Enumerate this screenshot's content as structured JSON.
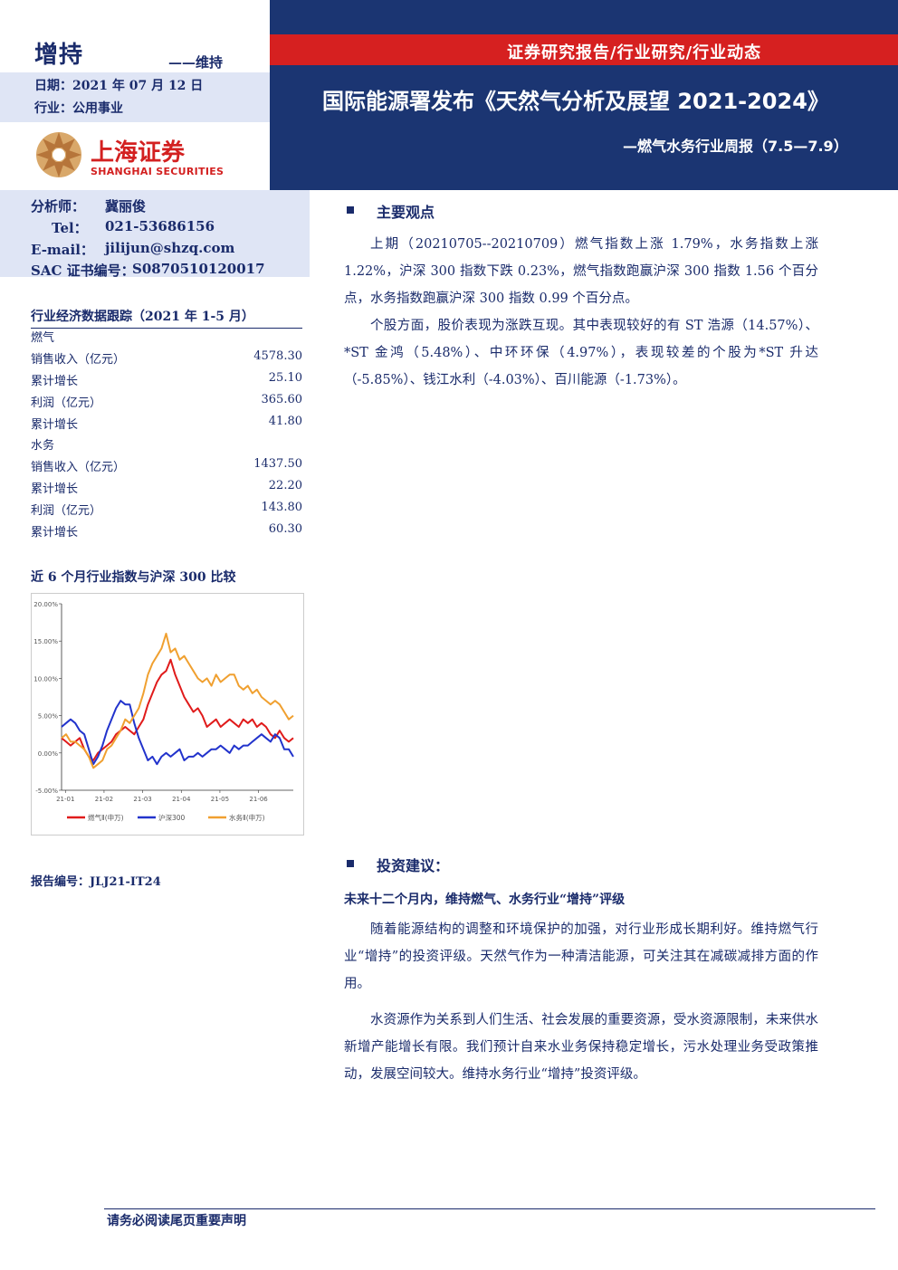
{
  "header": {
    "rating": "增持",
    "rating_sub": "——维持",
    "date": "日期：2021 年 07 月 12 日",
    "industry": "行业：公用事业",
    "logo_cn": "上海证券",
    "logo_en": "SHANGHAI SECURITIES",
    "report_type": "证券研究报告/行业研究/行业动态",
    "title": "国际能源署发布《天然气分析及展望 2021-2024》",
    "subtitle": "—燃气水务行业周报（7.5—7.9）"
  },
  "analyst": {
    "label": "分析师：",
    "name": "冀丽俊",
    "tel_label": "Tel：",
    "tel": "021-53686156",
    "email_label": "E-mail：",
    "email": "jilijun@shzq.com",
    "sac_label": "SAC 证书编号：",
    "sac": "S0870510120017"
  },
  "tracking": {
    "title": "行业经济数据跟踪（2021 年 1-5 月）",
    "rows": [
      {
        "label": "燃气",
        "value": ""
      },
      {
        "label": "销售收入（亿元）",
        "value": "4578.30"
      },
      {
        "label": "累计增长",
        "value": "25.10"
      },
      {
        "label": "利润（亿元）",
        "value": "365.60"
      },
      {
        "label": "累计增长",
        "value": "41.80"
      },
      {
        "label": "水务",
        "value": ""
      },
      {
        "label": "销售收入（亿元）",
        "value": "1437.50"
      },
      {
        "label": "累计增长",
        "value": "22.20"
      },
      {
        "label": "利润（亿元）",
        "value": "143.80"
      },
      {
        "label": "累计增长",
        "value": "60.30"
      }
    ]
  },
  "chart_title": "近 6 个月行业指数与沪深 300 比较",
  "chart_data": {
    "type": "line",
    "title": "",
    "ylim": [
      -5,
      20
    ],
    "yticks": [
      "20.00%",
      "15.00%",
      "10.00%",
      "5.00%",
      "0.00%",
      "-5.00%"
    ],
    "xticks": [
      "21-01",
      "21-02",
      "21-03",
      "21-04",
      "21-05",
      "21-06"
    ],
    "series": [
      {
        "name": "燃气Ⅱ(申万)",
        "color": "#e01b1b",
        "values": [
          2.0,
          1.5,
          1.0,
          1.5,
          2.0,
          0.5,
          -0.5,
          -1.0,
          0.0,
          0.5,
          1.0,
          1.5,
          2.5,
          3.0,
          3.5,
          3.0,
          2.5,
          3.5,
          4.5,
          6.5,
          8.0,
          9.5,
          10.5,
          11.0,
          12.5,
          10.5,
          9.0,
          7.5,
          6.5,
          5.5,
          6.0,
          5.0,
          3.5,
          4.0,
          4.5,
          3.5,
          4.0,
          4.5,
          4.0,
          3.5,
          4.5,
          4.0,
          4.5,
          3.5,
          4.0,
          3.5,
          2.5,
          2.0,
          3.0,
          2.0,
          1.5,
          2.0
        ]
      },
      {
        "name": "沪深300",
        "color": "#2233cc",
        "values": [
          3.5,
          4.0,
          4.5,
          4.0,
          3.0,
          2.5,
          0.5,
          -1.5,
          -0.5,
          1.0,
          3.0,
          4.5,
          6.0,
          7.0,
          6.5,
          6.5,
          4.0,
          2.0,
          0.5,
          -1.0,
          -0.5,
          -1.5,
          -0.5,
          0.0,
          -0.5,
          0.0,
          0.5,
          -1.0,
          -0.5,
          -0.5,
          0.0,
          -0.5,
          0.0,
          0.5,
          0.5,
          1.0,
          0.5,
          0.0,
          1.0,
          0.5,
          1.0,
          1.0,
          1.5,
          2.0,
          2.5,
          2.0,
          1.5,
          2.5,
          2.0,
          0.5,
          0.5,
          -0.5
        ]
      },
      {
        "name": "水务Ⅱ(申万)",
        "color": "#f0a030",
        "values": [
          2.0,
          2.5,
          1.5,
          1.5,
          1.0,
          0.5,
          -0.5,
          -2.0,
          -1.5,
          -1.0,
          0.5,
          1.0,
          2.0,
          3.0,
          4.5,
          4.0,
          5.0,
          6.0,
          8.0,
          10.5,
          12.0,
          13.0,
          14.0,
          16.0,
          13.5,
          14.0,
          12.5,
          13.0,
          12.0,
          11.0,
          10.0,
          9.5,
          10.0,
          9.0,
          10.5,
          9.5,
          10.0,
          10.5,
          10.5,
          9.0,
          8.5,
          9.0,
          8.0,
          8.5,
          7.5,
          7.0,
          6.5,
          7.0,
          6.5,
          5.5,
          4.5,
          5.0
        ]
      }
    ]
  },
  "report_no": "报告编号：JLJ21-IT24",
  "main_view": {
    "heading": "主要观点",
    "p1": "上期（20210705--20210709）燃气指数上涨 1.79%，水务指数上涨 1.22%，沪深 300 指数下跌 0.23%，燃气指数跑赢沪深 300 指数 1.56 个百分点，水务指数跑赢沪深 300 指数 0.99 个百分点。",
    "p2": "个股方面，股价表现为涨跌互现。其中表现较好的有 ST 浩源（14.57%）、*ST 金鸿（5.48%）、中环环保（4.97%），表现较差的个股为*ST 升达（-5.85%）、钱江水利（-4.03%）、百川能源（-1.73%）。"
  },
  "invest": {
    "heading": "投资建议：",
    "subheading": "未来十二个月内，维持燃气、水务行业“增持”评级",
    "p1": "随着能源结构的调整和环境保护的加强，对行业形成长期利好。维持燃气行业“增持”的投资评级。天然气作为一种清洁能源，可关注其在减碳减排方面的作用。",
    "p2": "水资源作为关系到人们生活、社会发展的重要资源，受水资源限制，未来供水新增产能增长有限。我们预计自来水业务保持稳定增长，污水处理业务受政策推动，发展空间较大。维持水务行业“增持”投资评级。"
  },
  "footer": "请务必阅读尾页重要声明"
}
